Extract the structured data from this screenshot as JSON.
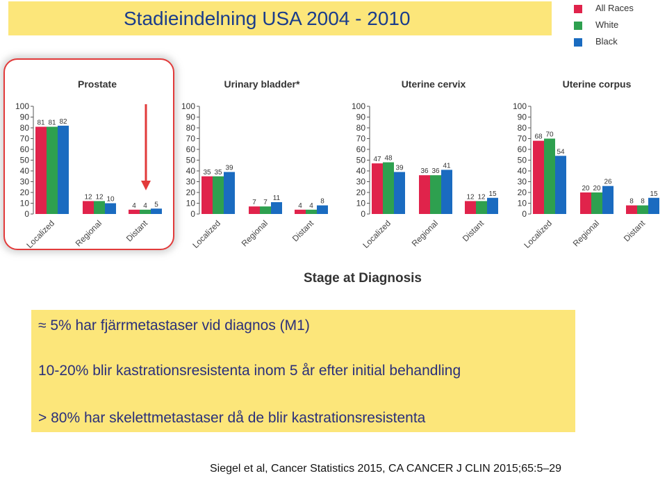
{
  "page_title": "Stadieindelning  USA 2004 - 2010",
  "legend": [
    {
      "label": "All Races",
      "color": "#e0234b"
    },
    {
      "label": "White",
      "color": "#2ea04f"
    },
    {
      "label": "Black",
      "color": "#1a6bc0"
    }
  ],
  "x_axis_label": "Stage at Diagnosis",
  "info": {
    "line1": "≈ 5% har fjärrmetastaser vid diagnos (M1)",
    "line2": "10-20% blir kastrationsresistenta inom 5 år efter initial behandling",
    "line3": "> 80% har skelettmetastaser då de blir kastrationsresistenta"
  },
  "citation": "Siegel et al, Cancer Statistics 2015,  CA CANCER J CLIN 2015;65:5–29",
  "chart_data": [
    {
      "type": "bar",
      "title": "Prostate",
      "categories": [
        "Localized",
        "Regional",
        "Distant"
      ],
      "ylim": [
        0,
        100
      ],
      "yticks": [
        0,
        10,
        20,
        30,
        40,
        50,
        60,
        70,
        80,
        90,
        100
      ],
      "series": [
        {
          "name": "All Races",
          "values": [
            81,
            12,
            4
          ]
        },
        {
          "name": "White",
          "values": [
            81,
            12,
            4
          ]
        },
        {
          "name": "Black",
          "values": [
            82,
            10,
            5
          ]
        }
      ]
    },
    {
      "type": "bar",
      "title": "Urinary bladder*",
      "categories": [
        "Localized",
        "Regional",
        "Distant"
      ],
      "ylim": [
        0,
        100
      ],
      "yticks": [
        0,
        10,
        20,
        30,
        40,
        50,
        60,
        70,
        80,
        90,
        100
      ],
      "series": [
        {
          "name": "All Races",
          "values": [
            35,
            7,
            4
          ]
        },
        {
          "name": "White",
          "values": [
            35,
            7,
            4
          ]
        },
        {
          "name": "Black",
          "values": [
            39,
            11,
            8
          ]
        }
      ]
    },
    {
      "type": "bar",
      "title": "Uterine cervix",
      "categories": [
        "Localized",
        "Regional",
        "Distant"
      ],
      "ylim": [
        0,
        100
      ],
      "yticks": [
        0,
        10,
        20,
        30,
        40,
        50,
        60,
        70,
        80,
        90,
        100
      ],
      "series": [
        {
          "name": "All Races",
          "values": [
            47,
            36,
            12
          ]
        },
        {
          "name": "White",
          "values": [
            48,
            36,
            12
          ]
        },
        {
          "name": "Black",
          "values": [
            39,
            41,
            15
          ]
        }
      ]
    },
    {
      "type": "bar",
      "title": "Uterine corpus",
      "categories": [
        "Localized",
        "Regional",
        "Distant"
      ],
      "ylim": [
        0,
        100
      ],
      "yticks": [
        0,
        10,
        20,
        30,
        40,
        50,
        60,
        70,
        80,
        90,
        100
      ],
      "series": [
        {
          "name": "All Races",
          "values": [
            68,
            20,
            8
          ]
        },
        {
          "name": "White",
          "values": [
            70,
            20,
            8
          ]
        },
        {
          "name": "Black",
          "values": [
            54,
            26,
            15
          ]
        }
      ]
    }
  ]
}
